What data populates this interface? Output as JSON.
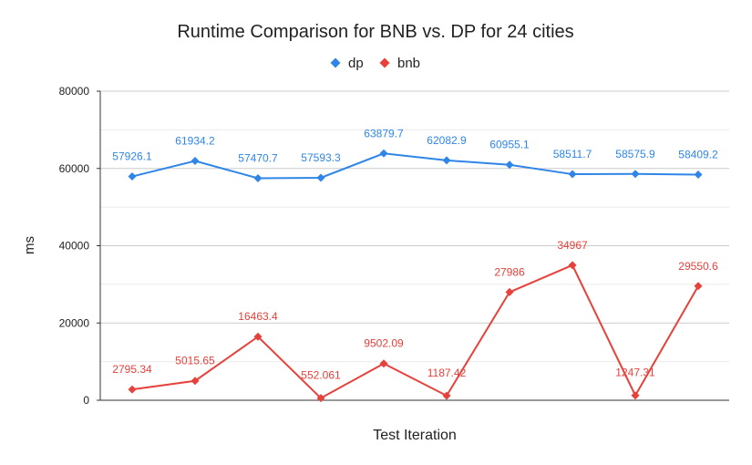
{
  "chart_data": {
    "type": "line",
    "title": "Runtime Comparison for BNB vs. DP for 24 cities",
    "xlabel": "Test Iteration",
    "ylabel": "ms",
    "ylim": [
      0,
      80000
    ],
    "yticks": [
      "0",
      "20000",
      "40000",
      "60000",
      "80000"
    ],
    "grid": true,
    "legend_position": "top",
    "x": [
      1,
      2,
      3,
      4,
      5,
      6,
      7,
      8,
      9,
      10
    ],
    "series": [
      {
        "name": "dp",
        "color": "#2f86e8",
        "marker": "diamond",
        "values": [
          57926.1,
          61934.2,
          57470.7,
          57593.3,
          63879.7,
          62082.9,
          60955.1,
          58511.7,
          58575.9,
          58409.2
        ],
        "labels": [
          "57926.1",
          "61934.2",
          "57470.7",
          "57593.3",
          "63879.7",
          "62082.9",
          "60955.1",
          "58511.7",
          "58575.9",
          "58409.2"
        ]
      },
      {
        "name": "bnb",
        "color": "#e8403a",
        "marker": "diamond",
        "values": [
          2795.34,
          5015.65,
          16463.4,
          552.061,
          9502.09,
          1187.42,
          27986,
          34967,
          1247.31,
          29550.6
        ],
        "labels": [
          "2795.34",
          "5015.65",
          "16463.4",
          "552.061",
          "9502.09",
          "1187.42",
          "27986",
          "34967",
          "1247.31",
          "29550.6"
        ]
      }
    ]
  }
}
